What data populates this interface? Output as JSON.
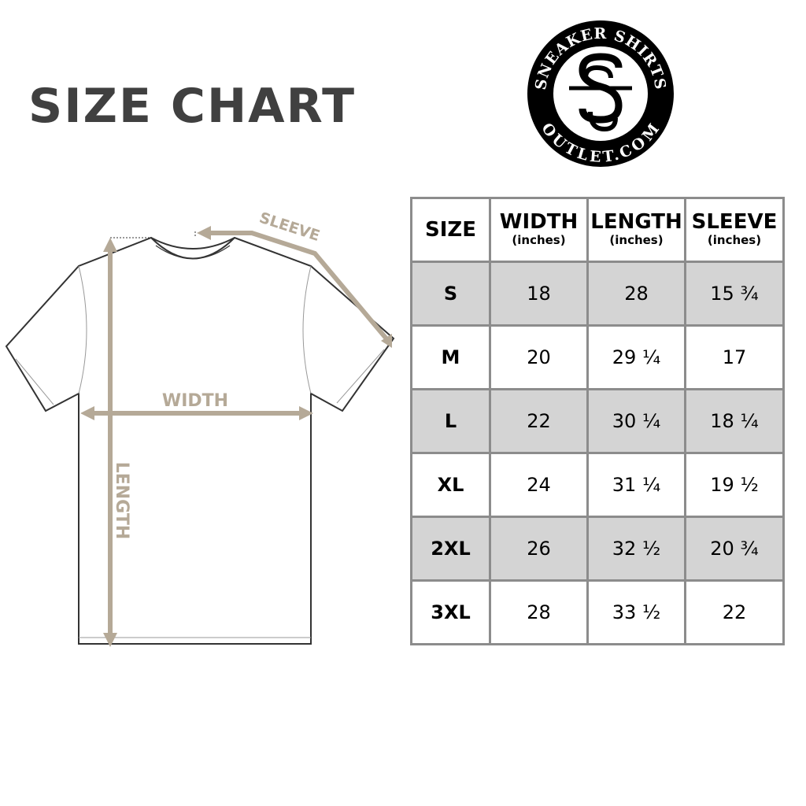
{
  "title": "SIZE CHART",
  "logo": {
    "top_text": "SNEAKER SHIRTS",
    "bottom_text": "OUTLET.COM",
    "monogram": "SS"
  },
  "diagram": {
    "labels": {
      "sleeve": "SLEEVE",
      "width": "WIDTH",
      "length": "LENGTH"
    },
    "arrow_color": "#b5a997",
    "outline_color": "#333333"
  },
  "table": {
    "headers": [
      {
        "label": "SIZE",
        "unit": ""
      },
      {
        "label": "WIDTH",
        "unit": "(inches)"
      },
      {
        "label": "LENGTH",
        "unit": "(inches)"
      },
      {
        "label": "SLEEVE",
        "unit": "(inches)"
      }
    ],
    "rows": [
      [
        "S",
        "18",
        "28",
        "15 ¾"
      ],
      [
        "M",
        "20",
        "29 ¼",
        "17"
      ],
      [
        "L",
        "22",
        "30 ¼",
        "18 ¼"
      ],
      [
        "XL",
        "24",
        "31 ¼",
        "19 ½"
      ],
      [
        "2XL",
        "26",
        "32 ½",
        "20 ¾"
      ],
      [
        "3XL",
        "28",
        "33 ½",
        "22"
      ]
    ],
    "shade_color": "#d4d4d4",
    "border_color": "#8c8c8c"
  }
}
